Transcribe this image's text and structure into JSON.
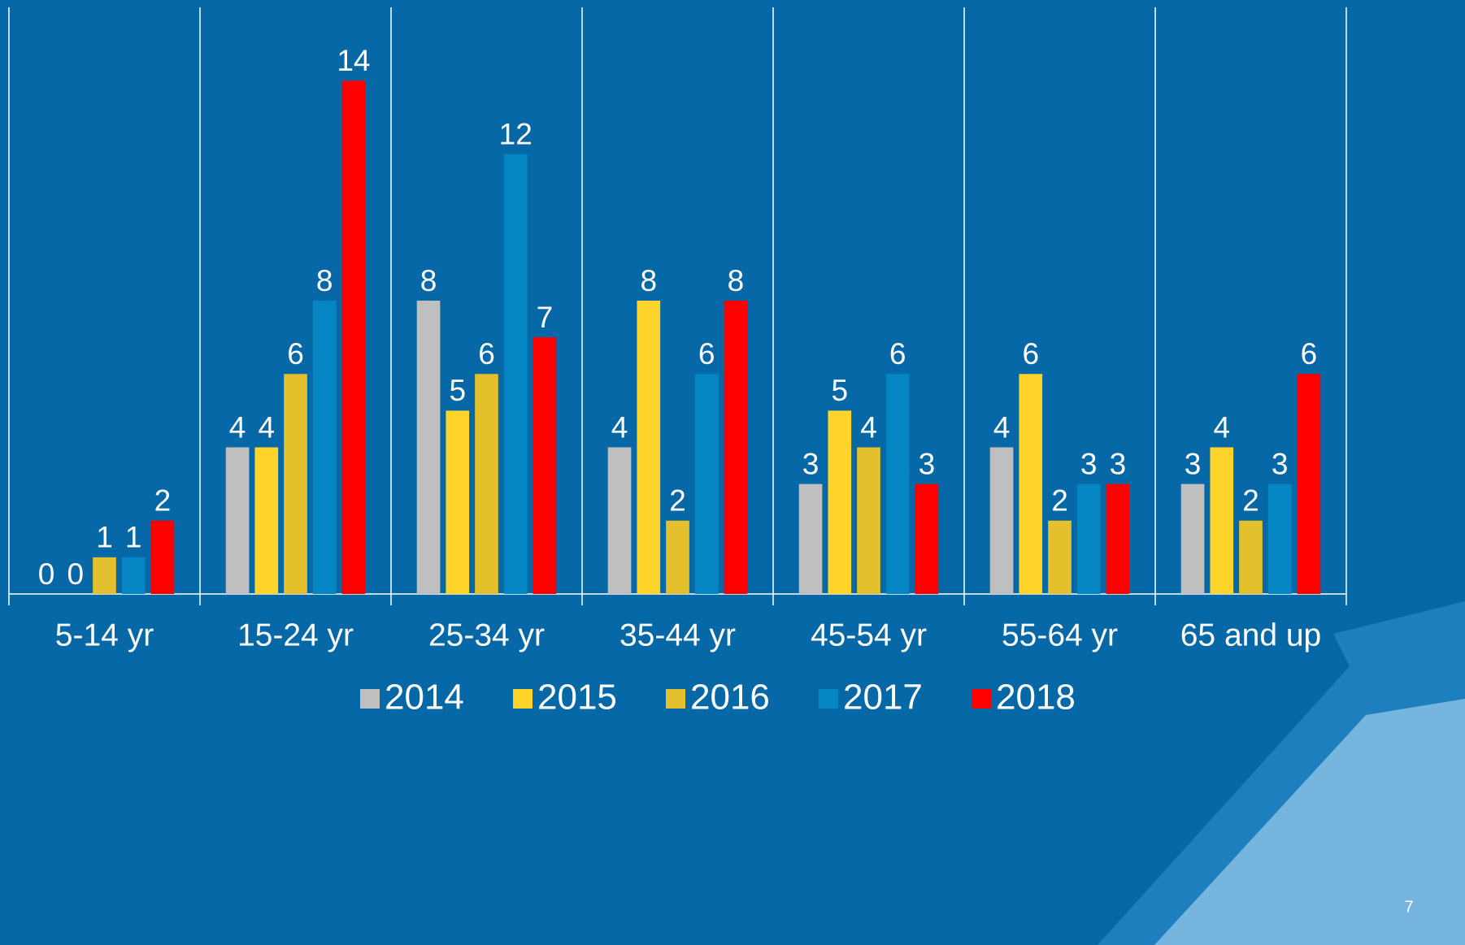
{
  "chart_data": {
    "type": "bar",
    "categories": [
      "5-14 yr",
      "15-24 yr",
      "25-34 yr",
      "35-44 yr",
      "45-54 yr",
      "55-64 yr",
      "65 and up"
    ],
    "series": [
      {
        "name": "2014",
        "color": "#bfbfbf",
        "values": [
          0,
          4,
          8,
          4,
          3,
          4,
          3
        ]
      },
      {
        "name": "2015",
        "color": "#ffd42a",
        "values": [
          0,
          4,
          5,
          8,
          5,
          6,
          4
        ]
      },
      {
        "name": "2016",
        "color": "#e3c02c",
        "values": [
          1,
          6,
          6,
          2,
          4,
          2,
          2
        ]
      },
      {
        "name": "2017",
        "color": "#0585c2",
        "values": [
          1,
          8,
          12,
          6,
          6,
          3,
          3
        ]
      },
      {
        "name": "2018",
        "color": "#ff0000",
        "values": [
          2,
          14,
          7,
          8,
          3,
          3,
          6
        ]
      }
    ],
    "ylim": [
      0,
      16
    ],
    "legend": "bottom"
  },
  "page_number": "7"
}
